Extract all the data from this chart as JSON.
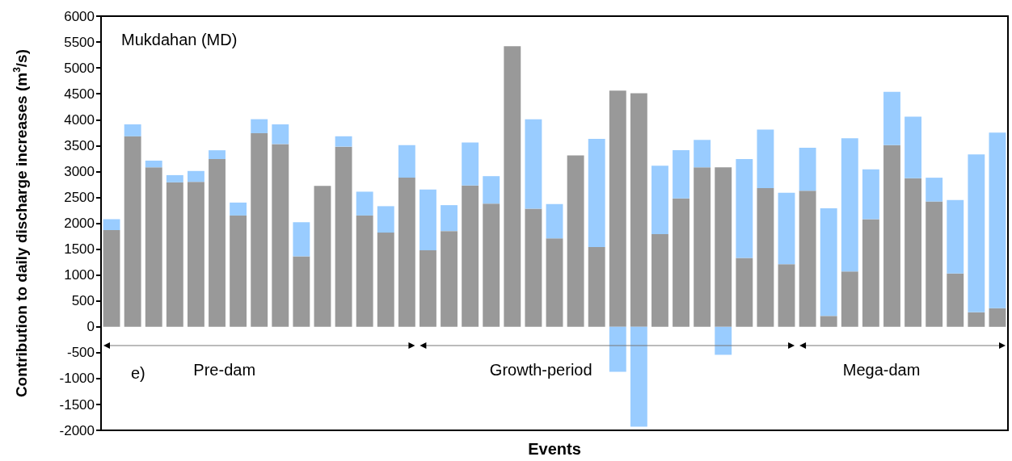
{
  "chart_data": {
    "type": "bar",
    "title": "Mukdahan (MD)",
    "xlabel": "Events",
    "ylabel": "Contribution to daily discharge increases (m$^{3}$/s)",
    "annotations": [
      "e)",
      "Pre-dam",
      "Growth-period",
      "Mega-dam"
    ],
    "categories": [
      null,
      null,
      null,
      null,
      null,
      null,
      null,
      null,
      null,
      null,
      null,
      null,
      null,
      null,
      null,
      null,
      null,
      null,
      null,
      null,
      null,
      null,
      null,
      null,
      null,
      null,
      null,
      null,
      null,
      null,
      null,
      null,
      null,
      null,
      null,
      null,
      null,
      null,
      null,
      null,
      null,
      null,
      null
    ],
    "stacked": true,
    "series": [
      {
        "color": "#999999",
        "values": [
          1870,
          3680,
          3080,
          2790,
          2800,
          3240,
          2150,
          3740,
          3530,
          1360,
          2720,
          3480,
          2150,
          1820,
          2880,
          1480,
          1850,
          2730,
          2380,
          5420,
          2280,
          1710,
          3310,
          1540,
          4560,
          4510,
          1790,
          2480,
          3080,
          3080,
          1330,
          2680,
          1210,
          2630,
          210,
          1070,
          2080,
          3510,
          2870,
          2420,
          1030,
          280,
          360
        ]
      },
      {
        "color": "#99ccff",
        "values": [
          210,
          230,
          130,
          140,
          210,
          170,
          250,
          270,
          380,
          660,
          null,
          200,
          460,
          510,
          630,
          1170,
          500,
          830,
          530,
          null,
          1730,
          660,
          null,
          2090,
          -870,
          -1930,
          1320,
          930,
          530,
          -540,
          1910,
          1130,
          1380,
          830,
          2080,
          2570,
          960,
          1030,
          1190,
          460,
          1420,
          3050,
          3390
        ]
      }
    ],
    "ylim": [
      -2000,
      6000
    ],
    "yticks": [
      -2000,
      -1500,
      -1000,
      -500,
      0,
      500,
      1000,
      1500,
      2000,
      2500,
      3000,
      3500,
      4000,
      4500,
      5000,
      5500,
      6000
    ],
    "grid": false
  }
}
